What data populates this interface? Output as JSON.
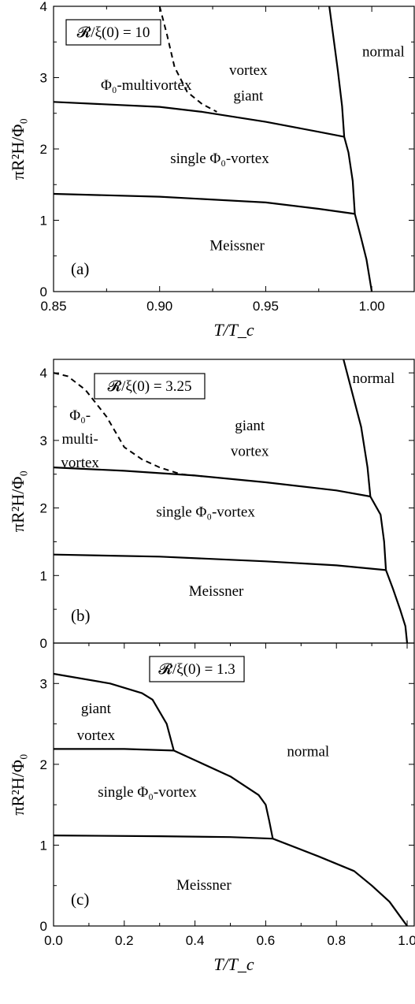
{
  "chart_data": [
    {
      "type": "line",
      "panel_label": "(a)",
      "box_label": "𝓡/ξ(0) = 10",
      "xlabel": "T/T_c",
      "ylabel": "πR²H/Φ₀",
      "xlim": [
        0.85,
        1.02
      ],
      "ylim": [
        0,
        4
      ],
      "xticks": [
        0.85,
        0.9,
        0.95,
        1.0
      ],
      "xtick_labels": [
        "0.85",
        "0.90",
        "0.95",
        "1.00"
      ],
      "yticks": [
        0,
        1,
        2,
        3,
        4
      ],
      "ytick_labels": [
        "0",
        "1",
        "2",
        "3",
        "4"
      ],
      "region_labels": [
        {
          "text": "normal",
          "x": 1.0055,
          "y": 3.3
        },
        {
          "text": "giant",
          "x": 0.9418,
          "y": 2.68
        },
        {
          "text": "vortex",
          "x": 0.9418,
          "y": 3.04
        },
        {
          "text": "Φ₀-multivortex",
          "x": 0.8937,
          "y": 2.83
        },
        {
          "text": "single Φ₀-vortex",
          "x": 0.9283,
          "y": 1.8
        },
        {
          "text": "Meissner",
          "x": 0.9365,
          "y": 0.58
        }
      ],
      "series": [
        {
          "style": "solid",
          "points": [
            [
              0.85,
              2.66
            ],
            [
              0.9,
              2.59
            ],
            [
              0.92,
              2.52
            ],
            [
              0.95,
              2.38
            ],
            [
              0.975,
              2.24
            ],
            [
              0.987,
              2.17
            ]
          ]
        },
        {
          "style": "solid",
          "points": [
            [
              0.85,
              1.37
            ],
            [
              0.9,
              1.33
            ],
            [
              0.95,
              1.25
            ],
            [
              0.975,
              1.16
            ],
            [
              0.992,
              1.09
            ]
          ]
        },
        {
          "style": "solid",
          "points": [
            [
              0.98,
              4.0
            ],
            [
              0.984,
              3.1
            ],
            [
              0.986,
              2.6
            ],
            [
              0.987,
              2.17
            ],
            [
              0.989,
              1.95
            ],
            [
              0.991,
              1.55
            ],
            [
              0.992,
              1.09
            ],
            [
              0.995,
              0.75
            ],
            [
              0.9975,
              0.45
            ],
            [
              1.0,
              0.0
            ]
          ]
        },
        {
          "style": "dashed",
          "points": [
            [
              0.9,
              4.0
            ],
            [
              0.9035,
              3.6
            ],
            [
              0.907,
              3.15
            ],
            [
              0.913,
              2.8
            ],
            [
              0.92,
              2.63
            ],
            [
              0.927,
              2.52
            ]
          ]
        }
      ]
    },
    {
      "type": "line",
      "panel_label": "(b)",
      "box_label": "𝓡/ξ(0) = 3.25",
      "xlabel": "",
      "ylabel": "πR²H/Φ₀",
      "xlim": [
        0.0,
        1.02
      ],
      "ylim": [
        0,
        4.2
      ],
      "yticks": [
        0,
        1,
        2,
        3,
        4
      ],
      "ytick_labels": [
        "0",
        "1",
        "2",
        "3",
        "4"
      ],
      "region_labels": [
        {
          "text": "normal",
          "x": 0.905,
          "y": 3.85
        },
        {
          "text": "giant",
          "x": 0.555,
          "y": 3.15
        },
        {
          "text": "vortex",
          "x": 0.555,
          "y": 2.77
        },
        {
          "text": "Φ₀-",
          "x": 0.075,
          "y": 3.3
        },
        {
          "text": "multi-",
          "x": 0.075,
          "y": 2.95
        },
        {
          "text": "vortex",
          "x": 0.075,
          "y": 2.6
        },
        {
          "text": "single Φ₀-vortex",
          "x": 0.43,
          "y": 1.87
        },
        {
          "text": "Meissner",
          "x": 0.46,
          "y": 0.7
        }
      ],
      "series": [
        {
          "style": "solid",
          "points": [
            [
              0.0,
              2.6
            ],
            [
              0.2,
              2.55
            ],
            [
              0.4,
              2.48
            ],
            [
              0.6,
              2.38
            ],
            [
              0.8,
              2.26
            ],
            [
              0.896,
              2.17
            ]
          ]
        },
        {
          "style": "solid",
          "points": [
            [
              0.0,
              1.31
            ],
            [
              0.3,
              1.28
            ],
            [
              0.6,
              1.21
            ],
            [
              0.8,
              1.15
            ],
            [
              0.94,
              1.08
            ]
          ]
        },
        {
          "style": "solid",
          "points": [
            [
              0.82,
              4.2
            ],
            [
              0.87,
              3.2
            ],
            [
              0.888,
              2.6
            ],
            [
              0.896,
              2.17
            ],
            [
              0.925,
              1.9
            ],
            [
              0.935,
              1.5
            ],
            [
              0.94,
              1.08
            ],
            [
              0.96,
              0.8
            ],
            [
              0.98,
              0.5
            ],
            [
              0.995,
              0.25
            ],
            [
              1.0,
              0.0
            ]
          ]
        },
        {
          "style": "dashed",
          "points": [
            [
              0.0,
              4.0
            ],
            [
              0.04,
              3.95
            ],
            [
              0.09,
              3.75
            ],
            [
              0.15,
              3.35
            ],
            [
              0.2,
              2.9
            ],
            [
              0.25,
              2.72
            ],
            [
              0.3,
              2.6
            ],
            [
              0.36,
              2.5
            ],
            [
              0.42,
              2.47
            ]
          ]
        }
      ]
    },
    {
      "type": "line",
      "panel_label": "(c)",
      "box_label": "𝓡/ξ(0) = 1.3",
      "xlabel": "T/T_c",
      "ylabel": "πR²H/Φ₀",
      "xlim": [
        0.0,
        1.02
      ],
      "ylim": [
        0,
        3.5
      ],
      "xticks": [
        0.0,
        0.2,
        0.4,
        0.6,
        0.8,
        1.0
      ],
      "xtick_labels": [
        "0.0",
        "0.2",
        "0.4",
        "0.6",
        "0.8",
        "1.0"
      ],
      "yticks": [
        0,
        1,
        2,
        3
      ],
      "ytick_labels": [
        "0",
        "1",
        "2",
        "3"
      ],
      "region_labels": [
        {
          "text": "giant",
          "x": 0.12,
          "y": 2.63
        },
        {
          "text": "vortex",
          "x": 0.12,
          "y": 2.3
        },
        {
          "text": "normal",
          "x": 0.72,
          "y": 2.1
        },
        {
          "text": "single Φ₀-vortex",
          "x": 0.265,
          "y": 1.6
        },
        {
          "text": "Meissner",
          "x": 0.425,
          "y": 0.45
        }
      ],
      "series": [
        {
          "style": "solid",
          "points": [
            [
              0.0,
              3.12
            ],
            [
              0.16,
              3.0
            ],
            [
              0.25,
              2.88
            ],
            [
              0.28,
              2.8
            ],
            [
              0.32,
              2.5
            ],
            [
              0.34,
              2.17
            ]
          ]
        },
        {
          "style": "solid",
          "points": [
            [
              0.0,
              2.19
            ],
            [
              0.2,
              2.19
            ],
            [
              0.34,
              2.17
            ]
          ]
        },
        {
          "style": "solid",
          "points": [
            [
              0.34,
              2.17
            ],
            [
              0.5,
              1.85
            ],
            [
              0.58,
              1.62
            ],
            [
              0.6,
              1.5
            ],
            [
              0.61,
              1.3
            ],
            [
              0.62,
              1.08
            ]
          ]
        },
        {
          "style": "solid",
          "points": [
            [
              0.0,
              1.12
            ],
            [
              0.3,
              1.11
            ],
            [
              0.5,
              1.1
            ],
            [
              0.62,
              1.08
            ]
          ]
        },
        {
          "style": "solid",
          "points": [
            [
              0.62,
              1.08
            ],
            [
              0.75,
              0.86
            ],
            [
              0.85,
              0.68
            ],
            [
              0.9,
              0.5
            ],
            [
              0.95,
              0.3
            ],
            [
              0.98,
              0.12
            ],
            [
              1.0,
              0.0
            ]
          ]
        }
      ]
    }
  ]
}
